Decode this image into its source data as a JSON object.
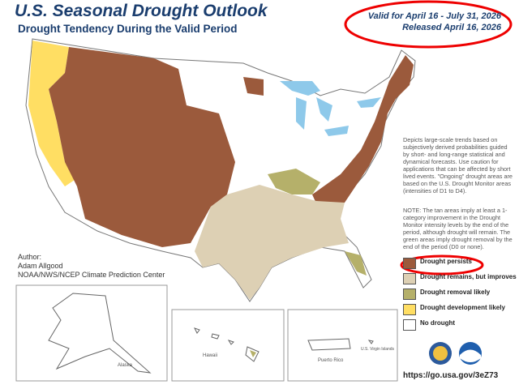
{
  "header": {
    "title": "U.S. Seasonal Drought Outlook",
    "subtitle": "Drought Tendency During the Valid Period",
    "valid": "Valid for April 16 - July 31, 2026",
    "released": "Released April 16, 2026"
  },
  "description": "Depicts large-scale trends based on subjectively derived probabilities guided by short- and long-range statistical and dynamical forecasts. Use caution for applications that can be affected by short lived events. \"Ongoing\" drought areas are based on the U.S. Drought Monitor areas (intensities of D1 to D4).",
  "note": "NOTE: The tan areas imply at least a 1-category improvement in the Drought Monitor intensity levels by the end of the period, although drought will remain. The green areas imply drought removal by the end of the period (D0 or none).",
  "author": {
    "label": "Author:",
    "name": "Adam Allgood",
    "org": "NOAA/NWS/NCEP Climate Prediction Center"
  },
  "legend": {
    "items": [
      {
        "label": "Drought persists",
        "color": "#9b5a3c"
      },
      {
        "label": "Drought remains, but improves",
        "color": "#ddd0b4"
      },
      {
        "label": "Drought removal likely",
        "color": "#b5b06a"
      },
      {
        "label": "Drought development likely",
        "color": "#ffde63"
      },
      {
        "label": "No drought",
        "color": "#ffffff"
      }
    ]
  },
  "insets": {
    "alaska": "Alaska",
    "hawaii": "Hawaii",
    "puerto_rico": "Puerto Rico",
    "virgin_islands": "U.S. Virgin Islands"
  },
  "url": "https://go.usa.gov/3eZ73"
}
